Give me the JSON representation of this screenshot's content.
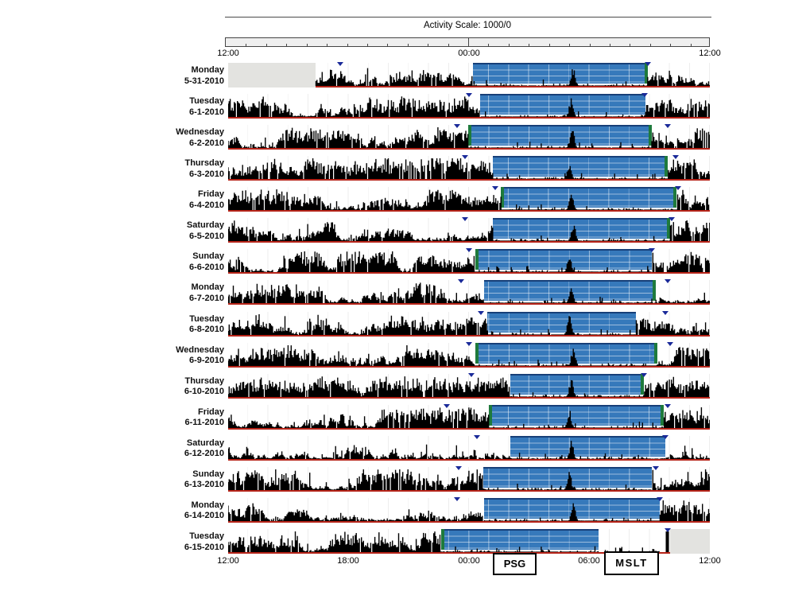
{
  "title": "Activity Scale: 1000/0",
  "axis": {
    "top": [
      "12:00",
      "00:00",
      "12:00"
    ],
    "bottom": [
      "12:00",
      "18:00",
      "00:00",
      "06:00",
      "12:00"
    ],
    "hours_span": 24,
    "start_at": "12:00 noon"
  },
  "annotations": {
    "psg": "PSG",
    "mslt": "MSLT"
  },
  "colors": {
    "bars": "#000000",
    "sleep_fill": "#3679bb",
    "sleep_top_border": "#173f78",
    "sleep_grid": "rgba(255,255,255,0.5)",
    "green_edge": "#1e7a3c",
    "baseline_red": "#b62318",
    "no_data_gray": "#e3e3e0",
    "marker_navy": "#1a2a99",
    "scalebar_fill": "#efefef"
  },
  "chart_data": {
    "type": "actogram",
    "x_origin_hour": "12:00",
    "hours_per_row": 24,
    "rows": [
      {
        "day": "Monday",
        "date": "5-31-2010",
        "sleep": [
          12.2,
          20.9
        ],
        "no_data": [
          [
            0,
            4.35
          ]
        ],
        "green": "end",
        "burst": 17.2,
        "markers": [
          5.6,
          20.9
        ]
      },
      {
        "day": "Tuesday",
        "date": "6-1-2010",
        "sleep": [
          12.55,
          20.8
        ],
        "no_data": [],
        "green": "none",
        "burst": 17.1,
        "markers": [
          12.0,
          20.75
        ]
      },
      {
        "day": "Wednesday",
        "date": "6-2-2010",
        "sleep": [
          11.95,
          21.1
        ],
        "no_data": [],
        "green": "both",
        "burst": 17.15,
        "markers": [
          11.4,
          21.9
        ]
      },
      {
        "day": "Thursday",
        "date": "6-3-2010",
        "sleep": [
          13.2,
          21.9
        ],
        "no_data": [],
        "green": "end",
        "burst": 17.0,
        "markers": [
          11.8,
          22.3
        ]
      },
      {
        "day": "Friday",
        "date": "6-4-2010",
        "sleep": [
          13.6,
          22.35
        ],
        "no_data": [],
        "green": "both",
        "burst": 17.1,
        "markers": [
          13.3,
          22.4
        ]
      },
      {
        "day": "Saturday",
        "date": "6-5-2010",
        "sleep": [
          13.2,
          22.0
        ],
        "no_data": [],
        "green": "end",
        "burst": 17.2,
        "markers": [
          11.8,
          22.1
        ]
      },
      {
        "day": "Sunday",
        "date": "6-6-2010",
        "sleep": [
          12.3,
          21.1
        ],
        "no_data": [],
        "green": "start",
        "burst": 17.0,
        "markers": [
          12.0,
          21.1
        ]
      },
      {
        "day": "Monday",
        "date": "6-7-2010",
        "sleep": [
          12.75,
          21.3
        ],
        "no_data": [],
        "green": "end",
        "burst": 17.1,
        "markers": [
          11.6,
          21.9
        ]
      },
      {
        "day": "Tuesday",
        "date": "6-8-2010",
        "sleep": [
          12.9,
          20.3
        ],
        "no_data": [],
        "green": "none",
        "burst": 17.0,
        "markers": [
          12.6,
          21.8
        ]
      },
      {
        "day": "Wednesday",
        "date": "6-9-2010",
        "sleep": [
          12.3,
          21.4
        ],
        "no_data": [],
        "green": "both",
        "burst": 17.2,
        "markers": [
          12.0,
          22.0
        ]
      },
      {
        "day": "Thursday",
        "date": "6-10-2010",
        "sleep": [
          14.05,
          20.7
        ],
        "no_data": [],
        "green": "end",
        "burst": 17.1,
        "markers": [
          12.1,
          20.7
        ]
      },
      {
        "day": "Friday",
        "date": "6-11-2010",
        "sleep": [
          13.0,
          21.7
        ],
        "no_data": [],
        "green": "both",
        "burst": 17.0,
        "markers": [
          10.9,
          21.9
        ]
      },
      {
        "day": "Saturday",
        "date": "6-12-2010",
        "sleep": [
          14.05,
          21.8
        ],
        "no_data": [],
        "green": "none",
        "burst": 17.1,
        "markers": [
          12.4,
          21.8
        ]
      },
      {
        "day": "Sunday",
        "date": "6-13-2010",
        "sleep": [
          12.7,
          21.1
        ],
        "no_data": [],
        "green": "none",
        "burst": 17.0,
        "markers": [
          11.5,
          21.3
        ]
      },
      {
        "day": "Monday",
        "date": "6-14-2010",
        "sleep": [
          12.75,
          21.5
        ],
        "no_data": [],
        "green": "none",
        "burst": 17.2,
        "markers": [
          11.4,
          21.5
        ]
      },
      {
        "day": "Tuesday",
        "date": "6-15-2010",
        "sleep": [
          10.6,
          18.45
        ],
        "no_data": [
          [
            22,
            24
          ]
        ],
        "green": "start",
        "burst": null,
        "markers": [
          21.9
        ],
        "sparse_after": true,
        "spike": 21.88
      }
    ]
  }
}
